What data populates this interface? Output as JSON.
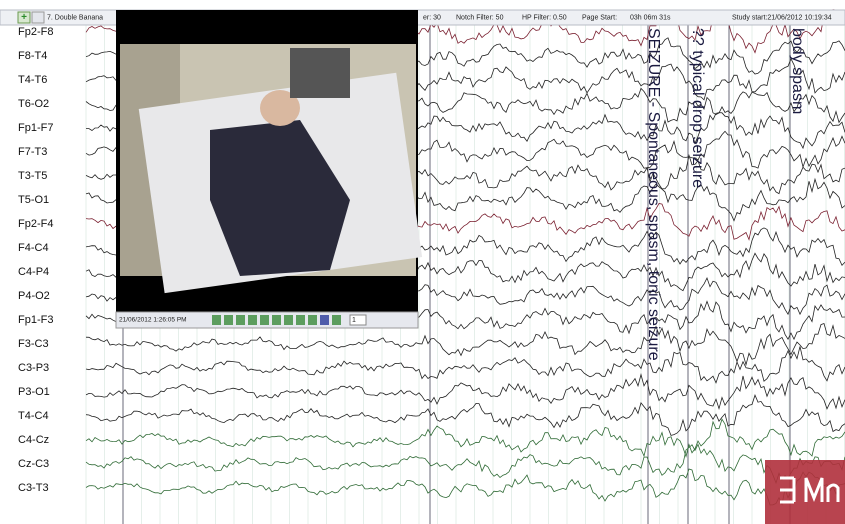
{
  "toolbar": {
    "montage": "7. Double Banana",
    "filter_low": "er: 30",
    "notch": "Notch Filter: 50",
    "hp": "HP Filter: 0.50",
    "page_start_label": "Page Start:",
    "page_start": "03h 06m 31s",
    "study_start": "Study start:21/06/2012 10:19:34"
  },
  "channels": [
    "Fp2-F8",
    "F8-T4",
    "T4-T6",
    "T6-O2",
    "Fp1-F7",
    "F7-T3",
    "T3-T5",
    "T5-O1",
    "Fp2-F4",
    "F4-C4",
    "C4-P4",
    "P4-O2",
    "Fp1-F3",
    "F3-C3",
    "C3-P3",
    "P3-O1",
    "T4-C4",
    "C4-Cz",
    "Cz-C3",
    "C3-T3"
  ],
  "annotations": [
    "SEIZURE - Spontaneous, spasm, tonic seizure",
    "?? typical drop seizure",
    "body spasm"
  ],
  "video": {
    "timestamp": "21/06/2012   1:26:05 PM",
    "frame": "1"
  }
}
